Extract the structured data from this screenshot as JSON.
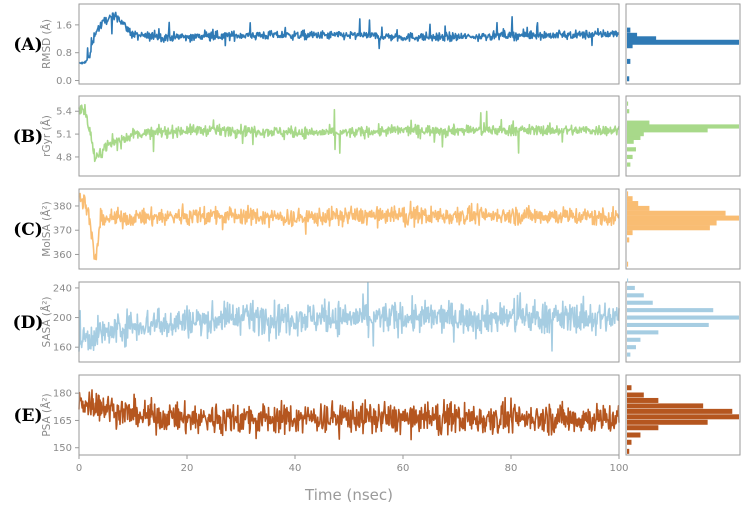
{
  "figure": {
    "xlabel": "Time (nsec)",
    "xticks": [
      "0",
      "20",
      "40",
      "60",
      "80",
      "100"
    ]
  },
  "chart_data": [
    {
      "type": "line",
      "panel_label": "(A)",
      "ylabel": "RMSD (Å)",
      "color": "#2f7ab5",
      "xlim": [
        0,
        100
      ],
      "ylim": [
        -0.1,
        2.2
      ],
      "yticks": [
        0.0,
        0.8,
        1.6
      ],
      "ytick_labels": [
        "0.0",
        "0.8",
        "1.6"
      ],
      "series": [
        {
          "x": [
            0,
            1,
            2,
            3,
            5,
            7,
            10,
            15,
            20,
            30,
            40,
            50,
            60,
            70,
            80,
            90,
            100
          ],
          "y": [
            0.5,
            0.5,
            0.7,
            1.4,
            1.75,
            1.85,
            1.3,
            1.25,
            1.25,
            1.3,
            1.3,
            1.3,
            1.25,
            1.25,
            1.3,
            1.3,
            1.35
          ]
        }
      ],
      "histogram": {
        "bins": [
          0.05,
          0.55,
          1.0,
          1.1,
          1.2,
          1.3,
          1.45,
          1.6,
          1.75
        ],
        "counts": [
          2,
          3,
          5,
          100,
          26,
          9,
          3,
          0,
          0
        ]
      }
    },
    {
      "type": "line",
      "panel_label": "(B)",
      "ylabel": "rGyr (Å)",
      "color": "#a8d98a",
      "xlim": [
        0,
        100
      ],
      "ylim": [
        4.55,
        5.6
      ],
      "yticks": [
        4.8,
        5.1,
        5.4
      ],
      "ytick_labels": [
        "4.8",
        "5.1",
        "5.4"
      ],
      "series": [
        {
          "x": [
            0,
            1,
            2,
            3,
            5,
            7,
            10,
            20,
            30,
            40,
            50,
            60,
            70,
            80,
            90,
            100
          ],
          "y": [
            5.45,
            5.4,
            5.15,
            4.75,
            4.95,
            5.0,
            5.1,
            5.15,
            5.15,
            5.12,
            5.12,
            5.15,
            5.15,
            5.15,
            5.15,
            5.15
          ]
        }
      ],
      "histogram": {
        "bins": [
          4.7,
          4.8,
          4.9,
          5.0,
          5.05,
          5.1,
          5.15,
          5.2,
          5.25,
          5.4,
          5.5
        ],
        "counts": [
          3,
          5,
          8,
          6,
          12,
          15,
          72,
          100,
          20,
          2,
          1
        ]
      }
    },
    {
      "type": "line",
      "panel_label": "(C)",
      "ylabel": "MolSA (Å²)",
      "color": "#f9bd73",
      "xlim": [
        0,
        100
      ],
      "ylim": [
        354,
        387
      ],
      "yticks": [
        360,
        370,
        380
      ],
      "ytick_labels": [
        "360",
        "370",
        "380"
      ],
      "series": [
        {
          "x": [
            0,
            1,
            2,
            3,
            4,
            5,
            10,
            20,
            30,
            40,
            50,
            60,
            70,
            80,
            90,
            100
          ],
          "y": [
            384,
            383,
            374,
            356,
            374,
            375,
            375,
            376,
            376,
            375,
            376,
            376,
            376,
            376,
            376,
            375
          ]
        }
      ],
      "histogram": {
        "bins": [
          356,
          366,
          369,
          371,
          373,
          375,
          377,
          379,
          381,
          383,
          385
        ],
        "counts": [
          1,
          2,
          5,
          74,
          80,
          100,
          88,
          20,
          10,
          5,
          1
        ]
      }
    },
    {
      "type": "line",
      "panel_label": "(D)",
      "ylabel": "SASA (Å²)",
      "color": "#a6cde2",
      "xlim": [
        0,
        100
      ],
      "ylim": [
        140,
        248
      ],
      "yticks": [
        160,
        200,
        240
      ],
      "ytick_labels": [
        "160",
        "200",
        "240"
      ],
      "series": [
        {
          "x": [
            0,
            5,
            10,
            20,
            30,
            40,
            50,
            60,
            70,
            80,
            90,
            100
          ],
          "y": [
            170,
            180,
            190,
            195,
            200,
            200,
            200,
            200,
            200,
            200,
            200,
            200
          ]
        }
      ],
      "histogram": {
        "bins": [
          150,
          160,
          170,
          180,
          190,
          200,
          210,
          220,
          230,
          240,
          250
        ],
        "counts": [
          3,
          8,
          12,
          28,
          73,
          100,
          77,
          23,
          15,
          7,
          1
        ]
      }
    },
    {
      "type": "line",
      "panel_label": "(E)",
      "ylabel": "PSA (Å²)",
      "color": "#b5561f",
      "xlim": [
        0,
        100
      ],
      "ylim": [
        146,
        190
      ],
      "yticks": [
        150,
        165,
        180
      ],
      "ytick_labels": [
        "150",
        "165",
        "180"
      ],
      "series": [
        {
          "x": [
            0,
            2,
            5,
            10,
            20,
            30,
            40,
            50,
            60,
            70,
            80,
            90,
            100
          ],
          "y": [
            175,
            175,
            172,
            168,
            166,
            166,
            166,
            167,
            166,
            166,
            166,
            166,
            166
          ]
        }
      ],
      "histogram": {
        "bins": [
          148,
          153,
          157,
          161,
          164,
          167,
          170,
          173,
          176,
          179,
          183
        ],
        "counts": [
          2,
          4,
          12,
          28,
          72,
          100,
          94,
          68,
          28,
          15,
          4
        ]
      }
    }
  ]
}
